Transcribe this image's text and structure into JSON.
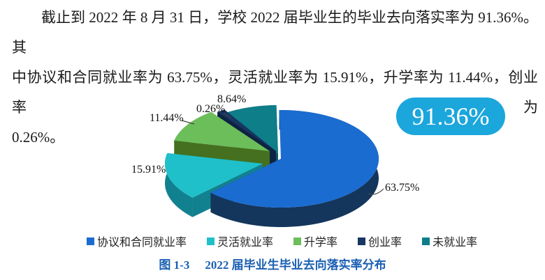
{
  "paragraph": {
    "lines": [
      "截止到 2022 年 8 月 31 日，学校 2022 届毕业生的毕业去向落实率为 91.36%。其",
      "中协议和合同就业率为 63.75%，灵活就业率为 15.91%，升学率为 11.44%，创业率为",
      "0.26%。"
    ]
  },
  "chart_data": {
    "type": "pie",
    "style": "3d-exploded",
    "title": "2022 届毕业生毕业去向落实率分布",
    "legend_position": "bottom",
    "badge_label": "91.36%",
    "badge_color": "#1BA6DC",
    "slices": [
      {
        "name": "协议和合同就业率",
        "value": 63.75,
        "label": "63.75%",
        "color": "#1A6CD1",
        "side": "#14365C"
      },
      {
        "name": "灵活就业率",
        "value": 15.91,
        "label": "15.91%",
        "color": "#1FC0C9",
        "side": "#12818F"
      },
      {
        "name": "升学率",
        "value": 11.44,
        "label": "11.44%",
        "color": "#6CBE5A",
        "side": "#44701F"
      },
      {
        "name": "创业率",
        "value": 0.26,
        "label": "0.26%",
        "color": "#173660",
        "side": "#0E2343"
      },
      {
        "name": "未就业率",
        "value": 8.64,
        "label": "8.64%",
        "color": "#0E7E89",
        "side": "#095A64"
      }
    ]
  },
  "caption": {
    "figure_label": "图 1-3",
    "title": "2022 届毕业生毕业去向落实率分布",
    "color": "#1A5FB2"
  }
}
